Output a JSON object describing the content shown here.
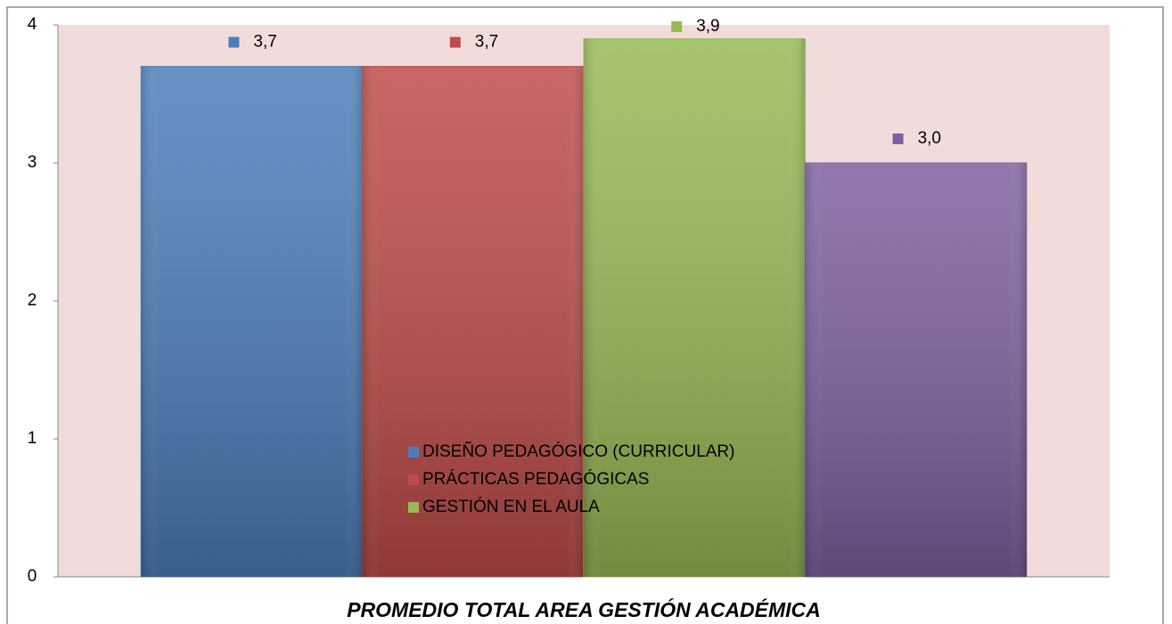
{
  "chart_data": {
    "type": "bar",
    "categories": [
      "PROMEDIO TOTAL AREA GESTIÓN ACADÉMICA"
    ],
    "series": [
      {
        "name": "DISEÑO PEDAGÓGICO (CURRICULAR)",
        "color": "#4a7ebb",
        "values": [
          3.7
        ],
        "value_labels": [
          "3,7"
        ]
      },
      {
        "name": "PRÁCTICAS PEDAGÓGICAS",
        "color": "#be4b48",
        "values": [
          3.7
        ],
        "value_labels": [
          "3,7"
        ]
      },
      {
        "name": "GESTIÓN EN EL AULA",
        "color": "#98b954",
        "values": [
          3.9
        ],
        "value_labels": [
          "3,9"
        ]
      },
      {
        "color": "#7d60a0",
        "values": [
          3.0
        ],
        "value_labels": [
          "3,0"
        ]
      }
    ],
    "ylim": [
      0,
      4
    ],
    "yticks": [
      0,
      1,
      2,
      3,
      4
    ],
    "plot_background": "#f2dcdb"
  }
}
